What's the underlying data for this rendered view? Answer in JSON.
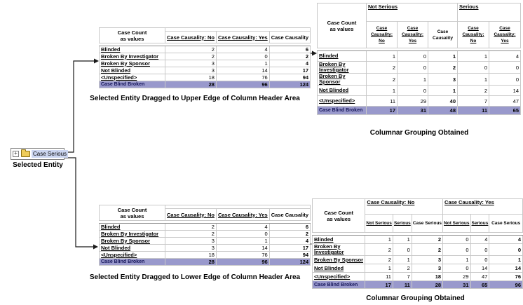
{
  "colors": {
    "lavender": "#9999CC",
    "link_navy": "#333399",
    "gray_header": "#D8D8D8",
    "gray_cell": "#E3E3E3",
    "selection": "#CBD5F0",
    "arrow": "#1A1A1A"
  },
  "entity": {
    "label": "Case Serious",
    "caption": "Selected Entity"
  },
  "tables": {
    "upper_source": {
      "corner": "Case Count\nas values",
      "columns": [
        {
          "label": "Case Causality: No",
          "style": "link"
        },
        {
          "label": "Case Causality: Yes",
          "style": "link"
        },
        {
          "label": "Case Causality",
          "style": "accent"
        }
      ],
      "rows": [
        {
          "label": "Blinded",
          "values": [
            2,
            4,
            6
          ]
        },
        {
          "label": "Broken By Investigator",
          "values": [
            2,
            0,
            2
          ]
        },
        {
          "label": "Broken By Sponsor",
          "values": [
            3,
            1,
            4
          ]
        },
        {
          "label": "Not Blinded",
          "values": [
            3,
            14,
            17
          ]
        },
        {
          "label": "<Unspecified>",
          "values": [
            18,
            76,
            94
          ]
        }
      ],
      "total": {
        "label": "Case Blind Broken",
        "values": [
          28,
          96,
          124
        ]
      },
      "caption": "Selected Entity Dragged to Upper Edge of Column Header Area"
    },
    "upper_result": {
      "corner": "Case Count\nas values",
      "groups": [
        {
          "label": "Not Serious",
          "span": 3
        },
        {
          "label": "Serious",
          "span": 2
        }
      ],
      "columns": [
        {
          "label": "Case Causality:\nNo",
          "style": "link"
        },
        {
          "label": "Case Causality:\nYes",
          "style": "link"
        },
        {
          "label": "Case\nCausality",
          "style": "gray"
        },
        {
          "label": "Case Causality:\nNo",
          "style": "link"
        },
        {
          "label": "Case Causality:\nYes",
          "style": "link"
        }
      ],
      "rows": [
        {
          "label": "Blinded",
          "values": [
            1,
            0,
            1,
            1,
            4
          ]
        },
        {
          "label": "Broken By Investigator",
          "values": [
            2,
            0,
            2,
            0,
            0
          ]
        },
        {
          "label": "Broken By Sponsor",
          "values": [
            2,
            1,
            3,
            1,
            0
          ]
        },
        {
          "label": "Not Blinded",
          "values": [
            1,
            0,
            1,
            2,
            14
          ]
        },
        {
          "label": "<Unspecified>",
          "values": [
            11,
            29,
            40,
            7,
            47
          ]
        }
      ],
      "total": {
        "label": "Case Blind Broken",
        "values": [
          17,
          31,
          48,
          11,
          65
        ]
      },
      "caption": "Columnar Grouping Obtained"
    },
    "lower_source": {
      "corner": "Case Count\nas values",
      "columns": [
        {
          "label": "Case Causality: No",
          "style": "link"
        },
        {
          "label": "Case Causality: Yes",
          "style": "link"
        },
        {
          "label": "Case Causality",
          "style": "accent"
        }
      ],
      "rows": [
        {
          "label": "Blinded",
          "values": [
            2,
            4,
            6
          ]
        },
        {
          "label": "Broken By Investigator",
          "values": [
            2,
            0,
            2
          ]
        },
        {
          "label": "Broken By Sponsor",
          "values": [
            3,
            1,
            4
          ]
        },
        {
          "label": "Not Blinded",
          "values": [
            3,
            14,
            17
          ]
        },
        {
          "label": "<Unspecified>",
          "values": [
            18,
            76,
            94
          ]
        }
      ],
      "total": {
        "label": "Case Blind Broken",
        "values": [
          28,
          96,
          124
        ]
      },
      "caption": "Selected Entity Dragged to Lower Edge of Column Header Area"
    },
    "lower_result": {
      "corner": "Case Count\nas values",
      "groups": [
        {
          "label": "Case Causality: No",
          "span": 3
        },
        {
          "label": "Case Causality: Yes",
          "span": 3
        }
      ],
      "columns": [
        {
          "label": "Not Serious",
          "style": "link"
        },
        {
          "label": "Serious",
          "style": "link"
        },
        {
          "label": "Case Serious",
          "style": "gray"
        },
        {
          "label": "Not Serious",
          "style": "link"
        },
        {
          "label": "Serious",
          "style": "link"
        },
        {
          "label": "Case Serious",
          "style": "gray"
        }
      ],
      "rows": [
        {
          "label": "Blinded",
          "values": [
            1,
            1,
            2,
            0,
            4,
            4
          ]
        },
        {
          "label": "Broken By Investigator",
          "values": [
            2,
            0,
            2,
            0,
            0,
            0
          ]
        },
        {
          "label": "Broken By Sponsor",
          "values": [
            2,
            1,
            3,
            1,
            0,
            1
          ]
        },
        {
          "label": "Not Blinded",
          "values": [
            1,
            2,
            3,
            0,
            14,
            14
          ]
        },
        {
          "label": "<Unspecified>",
          "values": [
            11,
            7,
            18,
            29,
            47,
            76
          ]
        }
      ],
      "total": {
        "label": "Case Blind Broken",
        "values": [
          17,
          11,
          28,
          31,
          65,
          96
        ]
      },
      "caption": "Columnar Grouping Obtained"
    }
  }
}
